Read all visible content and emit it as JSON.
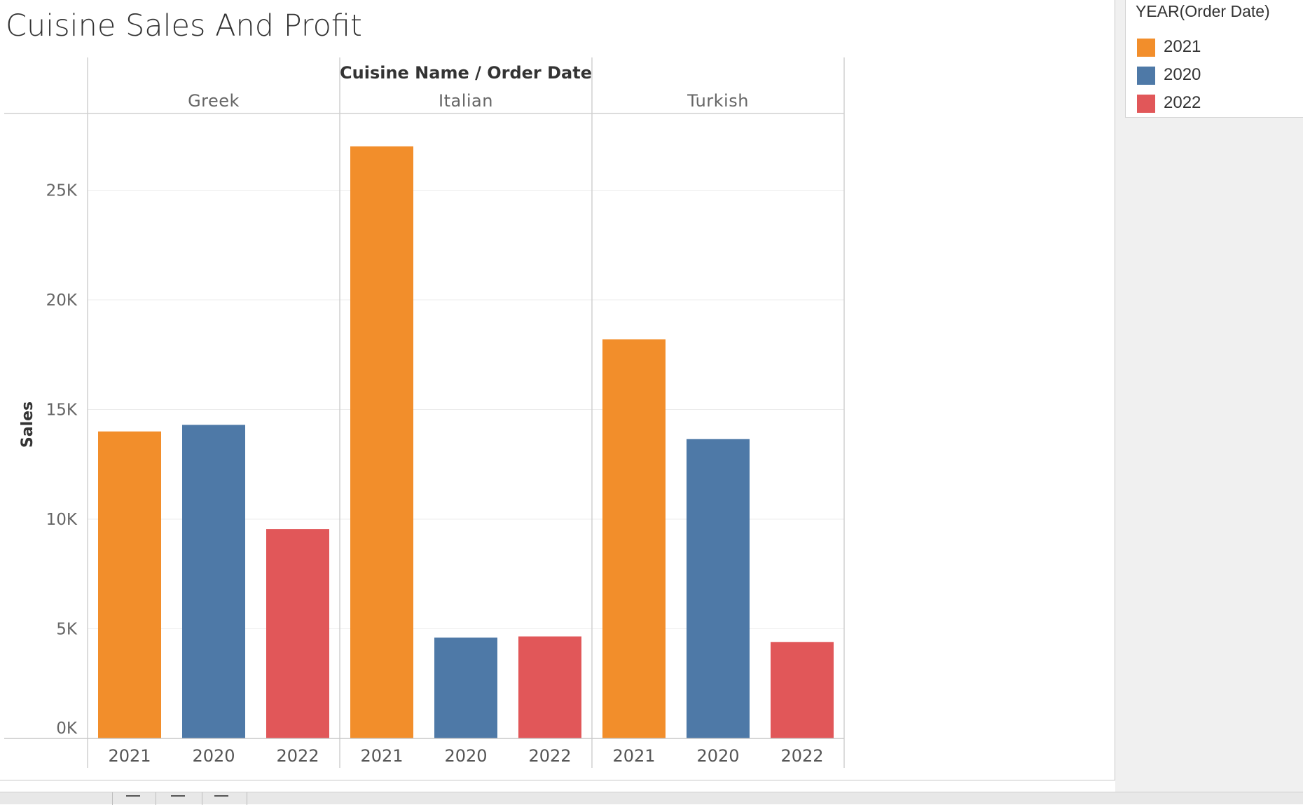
{
  "sheet": {
    "title": "Cuisine Sales And Profit"
  },
  "legend": {
    "title": "YEAR(Order Date)",
    "items": [
      {
        "label": "2021",
        "color": "#F28E2B"
      },
      {
        "label": "2020",
        "color": "#4E79A7"
      },
      {
        "label": "2022",
        "color": "#E15759"
      }
    ]
  },
  "chart_data": {
    "type": "bar",
    "title": "Cuisine Sales And Profit",
    "column_header": "Cuisine Name / Order Date",
    "ylabel": "Sales",
    "ylim": [
      0,
      28500
    ],
    "yticks": [
      {
        "value": 0,
        "label": "0K"
      },
      {
        "value": 5000,
        "label": "5K"
      },
      {
        "value": 10000,
        "label": "10K"
      },
      {
        "value": 15000,
        "label": "15K"
      },
      {
        "value": 20000,
        "label": "20K"
      },
      {
        "value": 25000,
        "label": "25K"
      }
    ],
    "grid": true,
    "legend_position": "top-right",
    "groups": [
      {
        "name": "Greek",
        "bars": [
          {
            "year": "2021",
            "value": 14000
          },
          {
            "year": "2020",
            "value": 14300
          },
          {
            "year": "2022",
            "value": 9550
          }
        ]
      },
      {
        "name": "Italian",
        "bars": [
          {
            "year": "2021",
            "value": 27000
          },
          {
            "year": "2020",
            "value": 4600
          },
          {
            "year": "2022",
            "value": 4650
          }
        ]
      },
      {
        "name": "Turkish",
        "bars": [
          {
            "year": "2021",
            "value": 18200
          },
          {
            "year": "2020",
            "value": 13650
          },
          {
            "year": "2022",
            "value": 4400
          }
        ]
      }
    ]
  }
}
